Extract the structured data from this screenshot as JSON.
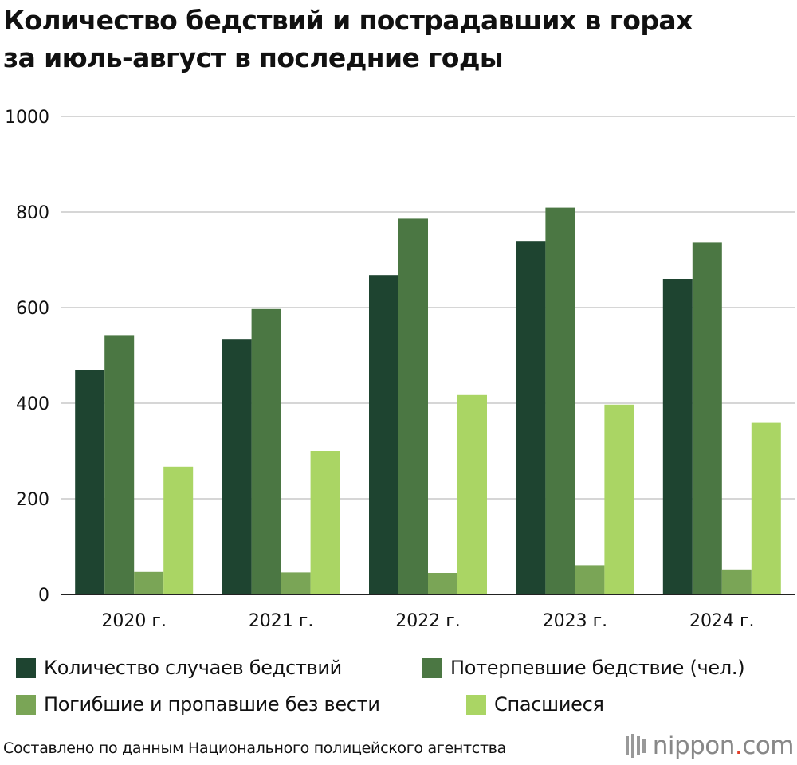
{
  "title": {
    "line1": "Количество бедствий и пострадавших в горах",
    "line2": "за июль-август в последние годы"
  },
  "chart_data": {
    "type": "bar",
    "categories": [
      "2020 г.",
      "2021 г.",
      "2022 г.",
      "2023 г.",
      "2024 г."
    ],
    "series": [
      {
        "name": "Количество случаев бедствий",
        "color": "#1e4430",
        "values": [
          470,
          533,
          668,
          738,
          660
        ]
      },
      {
        "name": "Потерпевшие бедствие (чел.)",
        "color": "#4b7743",
        "values": [
          541,
          597,
          786,
          809,
          736
        ]
      },
      {
        "name": "Погибшие и пропавшие без вести",
        "color": "#7aa556",
        "values": [
          47,
          46,
          45,
          61,
          52
        ]
      },
      {
        "name": "Спасшиеся",
        "color": "#aad564",
        "values": [
          267,
          300,
          417,
          397,
          359
        ]
      }
    ],
    "yticks": [
      0,
      200,
      400,
      600,
      800,
      1000
    ],
    "ylim": [
      0,
      1000
    ],
    "grid": true,
    "legend_position": "bottom"
  },
  "source": "Составлено по данным Национального полицейского агентства",
  "brand": {
    "name": "nippon",
    "dot": ".",
    "tld": "com",
    "icon": "nippon-logo-icon"
  }
}
